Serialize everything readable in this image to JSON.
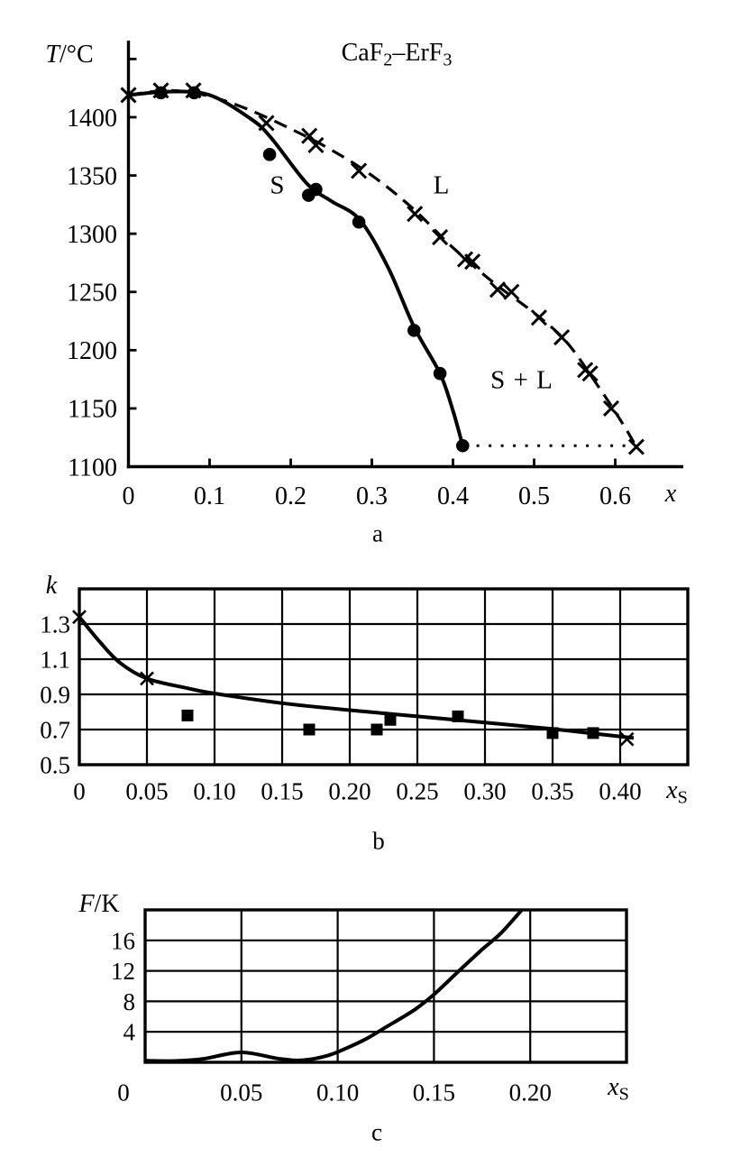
{
  "chart_data": [
    {
      "id": "a",
      "type": "line",
      "panel_label": "a",
      "title": "CaF2–ErF3",
      "title_parts": {
        "pre": "CaF",
        "sub1": "2",
        "dash": "–",
        "post": "ErF",
        "sub2": "3"
      },
      "xlabel": "x",
      "ylabel": "T/°C",
      "ylabel_parts": {
        "main": "T",
        "rest": "/°C"
      },
      "xlim": [
        0,
        0.683
      ],
      "ylim": [
        1100,
        1466
      ],
      "grid": false,
      "legend": "none",
      "x_ticks": [
        {
          "v": 0,
          "label": "0"
        },
        {
          "v": 0.1,
          "label": "0.1"
        },
        {
          "v": 0.2,
          "label": "0.2"
        },
        {
          "v": 0.3,
          "label": "0.3"
        },
        {
          "v": 0.4,
          "label": "0.4"
        },
        {
          "v": 0.5,
          "label": "0.5"
        },
        {
          "v": 0.6,
          "label": "0.6"
        }
      ],
      "y_ticks": [
        {
          "v": 1100,
          "label": "1100"
        },
        {
          "v": 1150,
          "label": "1150"
        },
        {
          "v": 1200,
          "label": "1200"
        },
        {
          "v": 1250,
          "label": "1250"
        },
        {
          "v": 1300,
          "label": "1300"
        },
        {
          "v": 1350,
          "label": "1350"
        },
        {
          "v": 1400,
          "label": "1400"
        },
        {
          "v": 1450,
          "label": ""
        }
      ],
      "region_labels": [
        {
          "text": "S"
        },
        {
          "text": "L"
        },
        {
          "text": "S + L"
        }
      ],
      "series": [
        {
          "name": "solidus-points",
          "kind": "points",
          "marker": "circle",
          "points": [
            [
              0.04,
              1421
            ],
            [
              0.081,
              1421
            ],
            [
              0.174,
              1368
            ],
            [
              0.222,
              1333
            ],
            [
              0.231,
              1338
            ],
            [
              0.284,
              1310
            ],
            [
              0.352,
              1217
            ],
            [
              0.384,
              1180
            ],
            [
              0.412,
              1118
            ]
          ]
        },
        {
          "name": "liquidus-points",
          "kind": "points",
          "marker": "x",
          "points": [
            [
              0,
              1419
            ],
            [
              0.04,
              1423
            ],
            [
              0.08,
              1423
            ],
            [
              0.17,
              1395
            ],
            [
              0.223,
              1384
            ],
            [
              0.231,
              1376
            ],
            [
              0.284,
              1354
            ],
            [
              0.353,
              1317
            ],
            [
              0.384,
              1297
            ],
            [
              0.415,
              1278
            ],
            [
              0.424,
              1276
            ],
            [
              0.455,
              1252
            ],
            [
              0.472,
              1250
            ],
            [
              0.506,
              1228
            ],
            [
              0.534,
              1211
            ],
            [
              0.563,
              1183
            ],
            [
              0.569,
              1180
            ],
            [
              0.595,
              1150
            ],
            [
              0.626,
              1117
            ]
          ]
        },
        {
          "name": "solidus-curve",
          "kind": "line",
          "style": "solid",
          "points": [
            [
              0,
              1419
            ],
            [
              0.05,
              1422
            ],
            [
              0.1,
              1419
            ],
            [
              0.15,
              1399
            ],
            [
              0.175,
              1383
            ],
            [
              0.22,
              1343
            ],
            [
              0.25,
              1328
            ],
            [
              0.285,
              1312
            ],
            [
              0.32,
              1271
            ],
            [
              0.352,
              1220
            ],
            [
              0.384,
              1180
            ],
            [
              0.4,
              1148
            ],
            [
              0.412,
              1118
            ]
          ]
        },
        {
          "name": "liquidus-curve",
          "kind": "line",
          "style": "dashed",
          "points": [
            [
              0,
              1419
            ],
            [
              0.05,
              1423
            ],
            [
              0.1,
              1418
            ],
            [
              0.15,
              1406
            ],
            [
              0.2,
              1390
            ],
            [
              0.25,
              1372
            ],
            [
              0.3,
              1350
            ],
            [
              0.35,
              1322
            ],
            [
              0.4,
              1288
            ],
            [
              0.45,
              1258
            ],
            [
              0.5,
              1232
            ],
            [
              0.54,
              1207
            ],
            [
              0.58,
              1168
            ],
            [
              0.61,
              1136
            ],
            [
              0.626,
              1117
            ]
          ]
        },
        {
          "name": "tie-line",
          "kind": "line",
          "style": "dotted",
          "points": [
            [
              0.414,
              1118
            ],
            [
              0.617,
              1118
            ]
          ]
        }
      ]
    },
    {
      "id": "b",
      "type": "line",
      "panel_label": "b",
      "title": "",
      "xlabel": "xS",
      "xlabel_parts": {
        "main": "x",
        "sub": "S"
      },
      "ylabel": "k",
      "ylabel_parts": {
        "main": "k"
      },
      "xlim": [
        0,
        0.45
      ],
      "ylim": [
        0.5,
        1.5
      ],
      "grid": true,
      "x_ticks": [
        {
          "v": 0,
          "label": "0"
        },
        {
          "v": 0.05,
          "label": "0.05"
        },
        {
          "v": 0.1,
          "label": "0.10"
        },
        {
          "v": 0.15,
          "label": "0.15"
        },
        {
          "v": 0.2,
          "label": "0.20"
        },
        {
          "v": 0.25,
          "label": "0.25"
        },
        {
          "v": 0.3,
          "label": "0.30"
        },
        {
          "v": 0.35,
          "label": "0.35"
        },
        {
          "v": 0.4,
          "label": "0.40"
        }
      ],
      "y_ticks": [
        {
          "v": 0.5,
          "label": "0.5"
        },
        {
          "v": 0.7,
          "label": "0.7"
        },
        {
          "v": 0.9,
          "label": "0.9"
        },
        {
          "v": 1.1,
          "label": "1.1"
        },
        {
          "v": 1.3,
          "label": "1.3"
        }
      ],
      "series": [
        {
          "name": "k-curve",
          "kind": "line",
          "style": "solid",
          "points": [
            [
              0,
              1.34
            ],
            [
              0.015,
              1.2
            ],
            [
              0.03,
              1.08
            ],
            [
              0.05,
              0.99
            ],
            [
              0.08,
              0.935
            ],
            [
              0.1,
              0.905
            ],
            [
              0.15,
              0.85
            ],
            [
              0.2,
              0.81
            ],
            [
              0.25,
              0.775
            ],
            [
              0.3,
              0.74
            ],
            [
              0.35,
              0.703
            ],
            [
              0.41,
              0.652
            ]
          ]
        },
        {
          "name": "k-x-points",
          "kind": "points",
          "marker": "x",
          "points": [
            [
              0,
              1.34
            ],
            [
              0.05,
              0.99
            ],
            [
              0.405,
              0.645
            ]
          ]
        },
        {
          "name": "k-square-points",
          "kind": "points",
          "marker": "square",
          "points": [
            [
              0.08,
              0.78
            ],
            [
              0.17,
              0.7
            ],
            [
              0.22,
              0.7
            ],
            [
              0.23,
              0.755
            ],
            [
              0.28,
              0.775
            ],
            [
              0.35,
              0.68
            ],
            [
              0.38,
              0.68
            ]
          ]
        }
      ]
    },
    {
      "id": "c",
      "type": "line",
      "panel_label": "c",
      "title": "",
      "xlabel": "xS",
      "xlabel_parts": {
        "main": "x",
        "sub": "S"
      },
      "ylabel": "F/K",
      "ylabel_parts": {
        "main": "F",
        "rest": "/K"
      },
      "xlim": [
        0,
        0.25
      ],
      "ylim": [
        0,
        20
      ],
      "grid": true,
      "x_ticks": [
        {
          "v": 0,
          "label": "0",
          "dx": -24
        },
        {
          "v": 0.05,
          "label": "0.05"
        },
        {
          "v": 0.1,
          "label": "0.10"
        },
        {
          "v": 0.15,
          "label": "0.15"
        },
        {
          "v": 0.2,
          "label": "0.20"
        }
      ],
      "y_ticks": [
        {
          "v": 4,
          "label": "4"
        },
        {
          "v": 8,
          "label": "8"
        },
        {
          "v": 12,
          "label": "12"
        },
        {
          "v": 16,
          "label": "16"
        }
      ],
      "series": [
        {
          "name": "f-curve",
          "kind": "line",
          "style": "solid",
          "points": [
            [
              0,
              0.2
            ],
            [
              0.015,
              0.18
            ],
            [
              0.03,
              0.45
            ],
            [
              0.05,
              1.3
            ],
            [
              0.07,
              0.45
            ],
            [
              0.082,
              0.28
            ],
            [
              0.095,
              0.9
            ],
            [
              0.105,
              1.9
            ],
            [
              0.115,
              3.1
            ],
            [
              0.125,
              4.6
            ],
            [
              0.14,
              6.9
            ],
            [
              0.15,
              8.9
            ],
            [
              0.163,
              12
            ],
            [
              0.175,
              14.8
            ],
            [
              0.185,
              17
            ],
            [
              0.197,
              20.4
            ]
          ]
        }
      ]
    }
  ]
}
